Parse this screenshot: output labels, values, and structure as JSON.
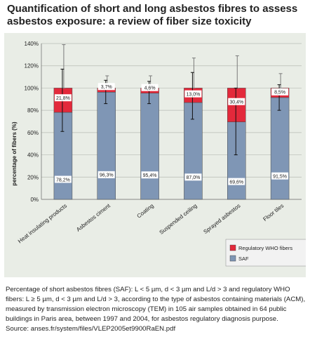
{
  "title": "Quantification of short and long asbestos fibres to assess asbestos exposure: a review of fiber size toxicity",
  "caption": "Percentage of short asbestos fibres (SAF): L < 5 µm, d < 3 µm and L/d > 3 and regulatory WHO fibers: L ≥ 5 µm, d < 3 µm and L/d > 3, according to the type of asbestos containing materials (ACM), measured by transmission electron microscopy (TEM) in 105 air samples obtained in 64 public buildings in Paris area, between 1997 and 2004, for asbestos regulatory diagnosis purpose.",
  "source": "Source: anses.fr/system/files/VLEP2005et9900RaEN.pdf",
  "chart_data": {
    "type": "bar",
    "stacked": true,
    "categories": [
      "Heat insulating products",
      "Asbestos ciment",
      "Coating",
      "Suspended ceiling",
      "Sprayed asbestos",
      "Floor tiles"
    ],
    "series": [
      {
        "name": "SAF",
        "color": "#7f96b5",
        "values": [
          78.2,
          96.3,
          95.4,
          87.0,
          69.6,
          91.5
        ],
        "labels": [
          "78,2%",
          "96,3%",
          "95,4%",
          "87,0%",
          "69,6%",
          "91,5%"
        ]
      },
      {
        "name": "Regulatory WHO fibers",
        "color": "#e3293b",
        "values": [
          21.8,
          3.7,
          4.6,
          13.0,
          30.4,
          8.5
        ],
        "labels": [
          "21,8%",
          "3,7%",
          "4,6%",
          "13,0%",
          "30,4%",
          "8,5%"
        ]
      }
    ],
    "error_bars": {
      "saf": [
        [
          61,
          117
        ],
        [
          86,
          107
        ],
        [
          86,
          106
        ],
        [
          72,
          114
        ],
        [
          40,
          100
        ],
        [
          80,
          103
        ]
      ],
      "total": [
        [
          100,
          139
        ],
        [
          100,
          111
        ],
        [
          100,
          111
        ],
        [
          100,
          127
        ],
        [
          100,
          129
        ],
        [
          100,
          113
        ]
      ]
    },
    "ylabel": "percentage of fibers (%)",
    "xlabel": "",
    "ylim": [
      0,
      140
    ],
    "yticks": [
      0,
      20,
      40,
      60,
      80,
      100,
      120,
      140
    ],
    "ytick_labels": [
      "0%",
      "20%",
      "40%",
      "60%",
      "80%",
      "100%",
      "120%",
      "140%"
    ],
    "grid": true,
    "legend_position": "bottom-right"
  }
}
